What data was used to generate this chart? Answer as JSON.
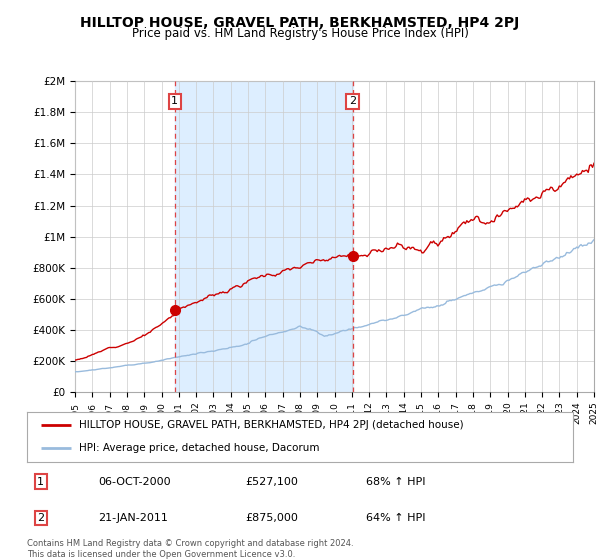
{
  "title": "HILLTOP HOUSE, GRAVEL PATH, BERKHAMSTED, HP4 2PJ",
  "subtitle": "Price paid vs. HM Land Registry's House Price Index (HPI)",
  "title_fontsize": 10,
  "subtitle_fontsize": 8.5,
  "background_color": "#ffffff",
  "plot_bg_color": "#ffffff",
  "grid_color": "#cccccc",
  "red_line_color": "#cc0000",
  "blue_line_color": "#99bbdd",
  "vline_color": "#dd4444",
  "shade_color": "#ddeeff",
  "marker1_year": 2000.77,
  "marker2_year": 2011.05,
  "marker1_value": 527100,
  "marker2_value": 875000,
  "annotation1": [
    "1",
    "06-OCT-2000",
    "£527,100",
    "68% ↑ HPI"
  ],
  "annotation2": [
    "2",
    "21-JAN-2011",
    "£875,000",
    "64% ↑ HPI"
  ],
  "legend_line1": "HILLTOP HOUSE, GRAVEL PATH, BERKHAMSTED, HP4 2PJ (detached house)",
  "legend_line2": "HPI: Average price, detached house, Dacorum",
  "footer": "Contains HM Land Registry data © Crown copyright and database right 2024.\nThis data is licensed under the Open Government Licence v3.0.",
  "ylim": [
    0,
    2000000
  ],
  "yticks": [
    0,
    200000,
    400000,
    600000,
    800000,
    1000000,
    1200000,
    1400000,
    1600000,
    1800000,
    2000000
  ],
  "ytick_labels": [
    "£0",
    "£200K",
    "£400K",
    "£600K",
    "£800K",
    "£1M",
    "£1.2M",
    "£1.4M",
    "£1.6M",
    "£1.8M",
    "£2M"
  ],
  "xtick_years": [
    1995,
    1996,
    1997,
    1998,
    1999,
    2000,
    2001,
    2002,
    2003,
    2004,
    2005,
    2006,
    2007,
    2008,
    2009,
    2010,
    2011,
    2012,
    2013,
    2014,
    2015,
    2016,
    2017,
    2018,
    2019,
    2020,
    2021,
    2022,
    2023,
    2024,
    2025
  ]
}
